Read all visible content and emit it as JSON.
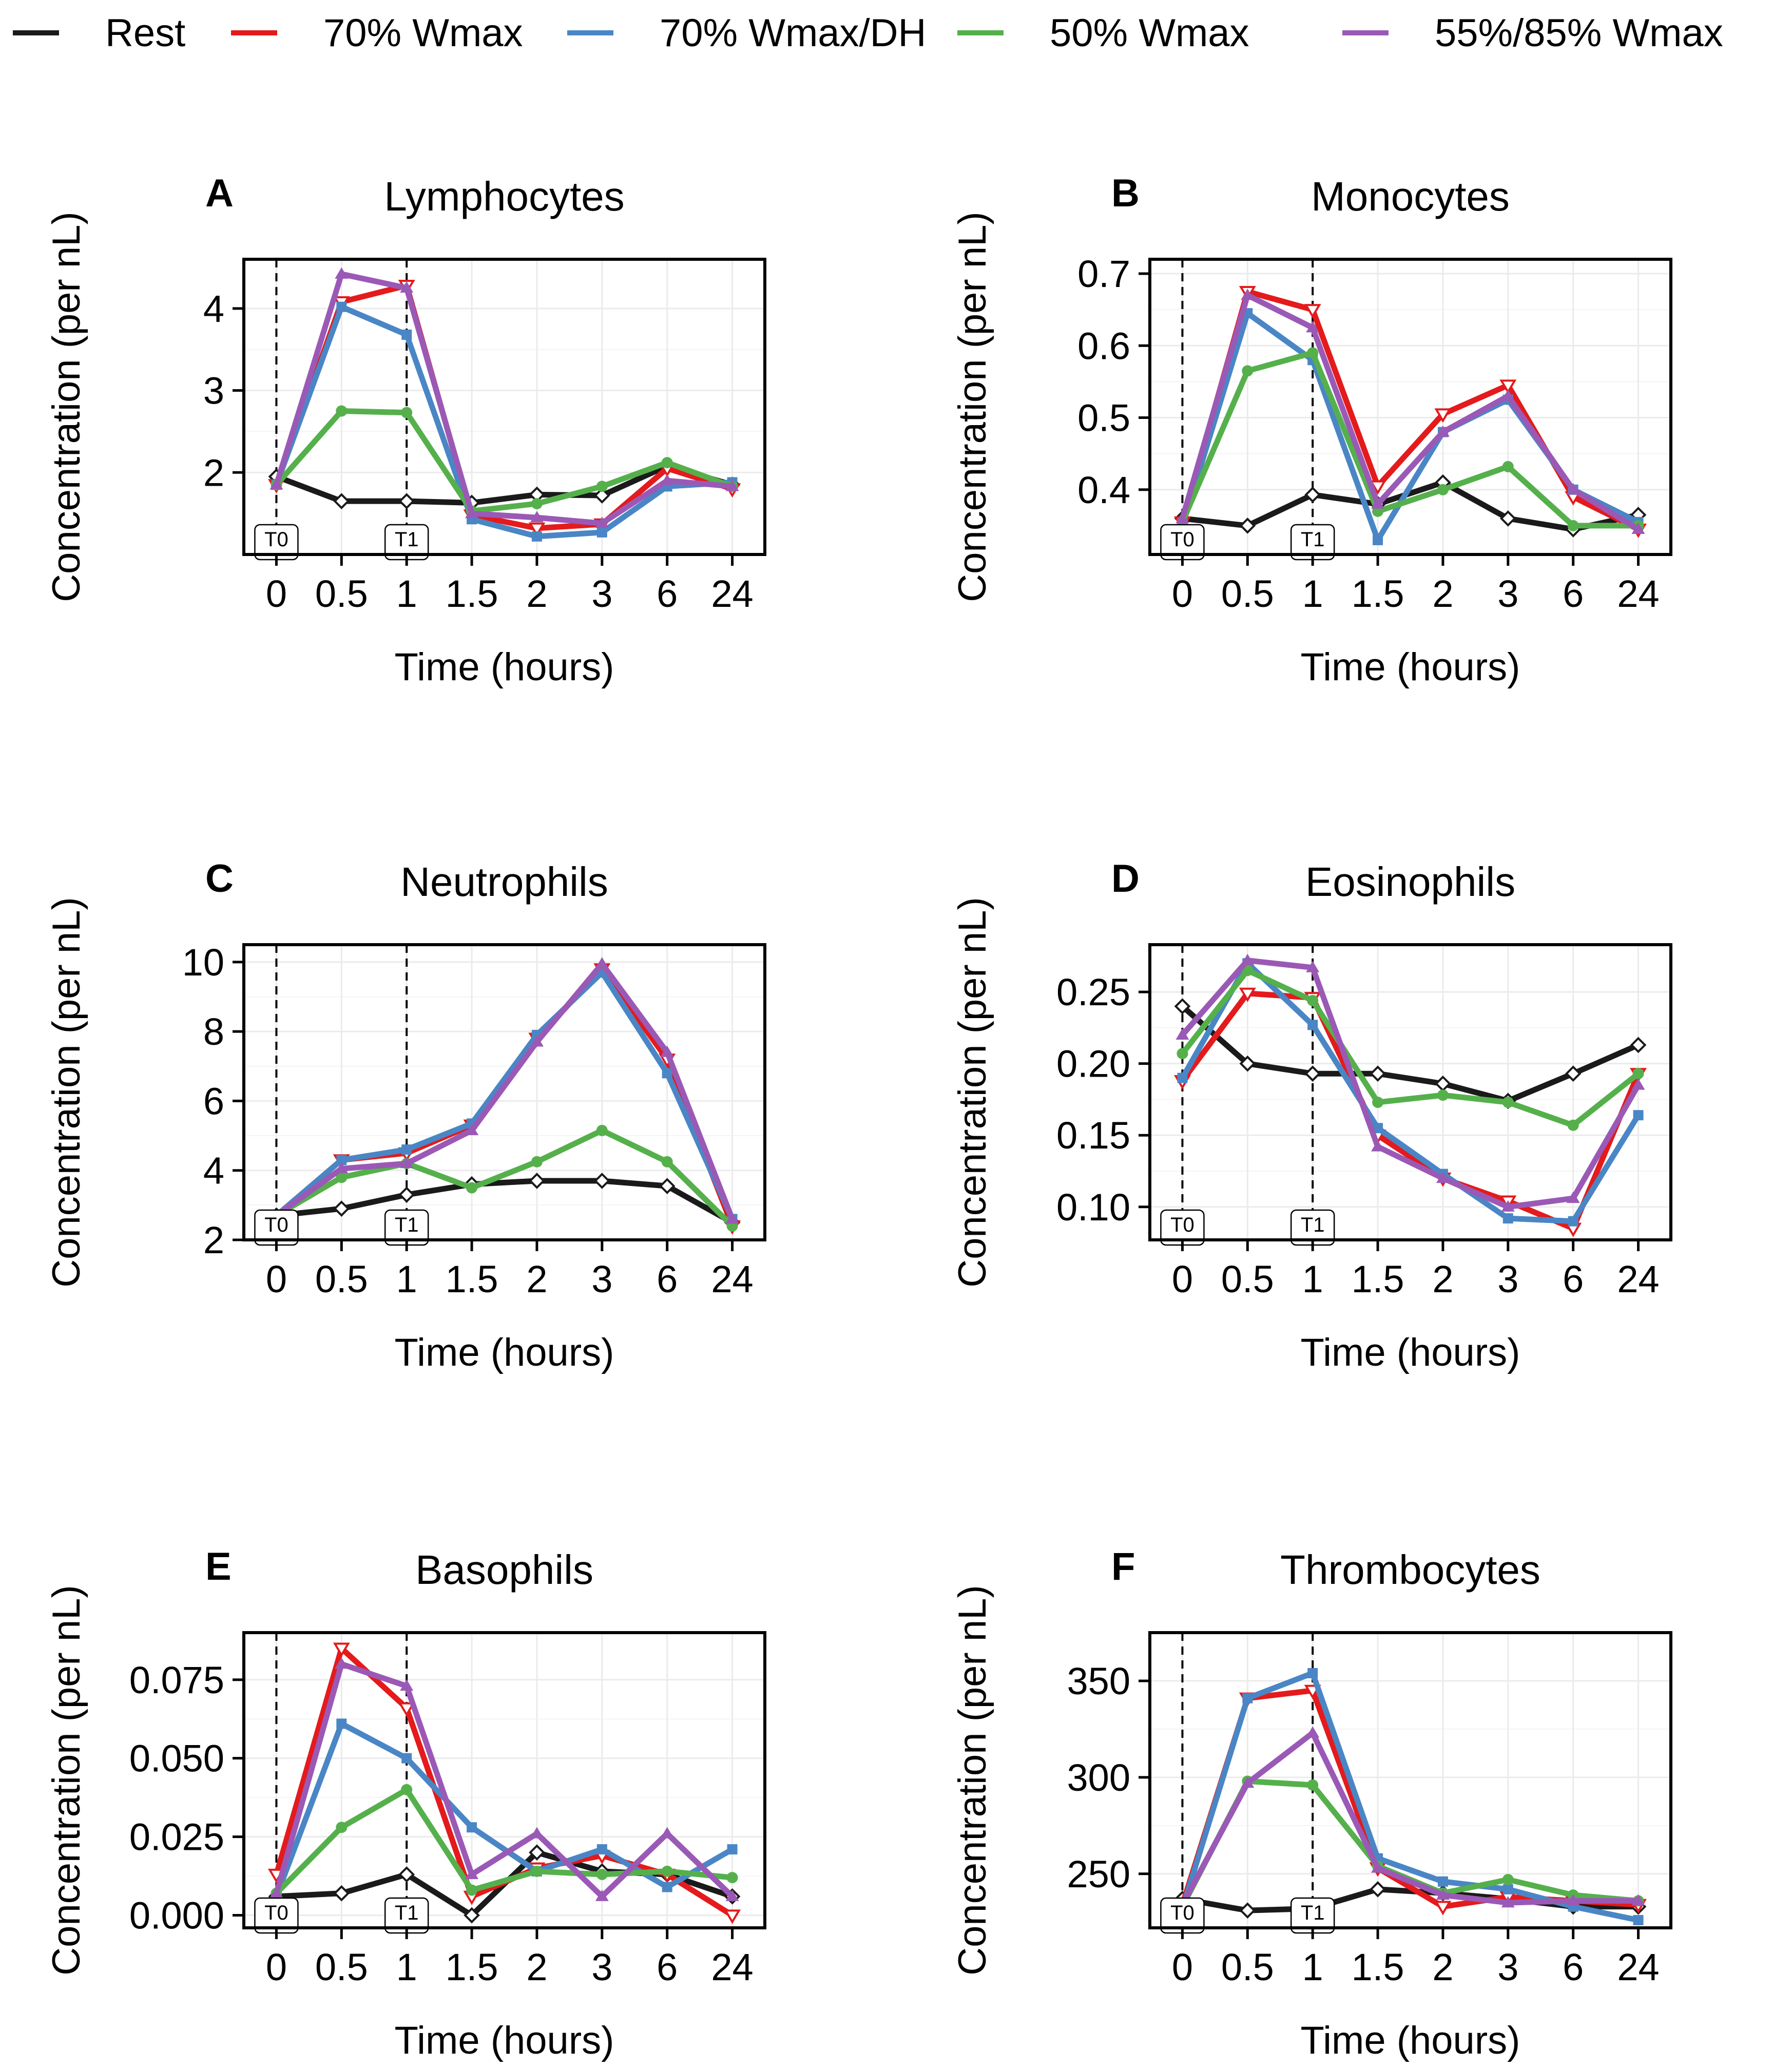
{
  "legend": [
    {
      "name": "Rest",
      "color": "#1a1a1a"
    },
    {
      "name": "70% Wmax",
      "color": "#e41a1c"
    },
    {
      "name": "70% Wmax/DH",
      "color": "#4a86c5"
    },
    {
      "name": "50% Wmax",
      "color": "#55b04c"
    },
    {
      "name": "55%/85% Wmax",
      "color": "#9b59b6"
    }
  ],
  "chart_data": [
    {
      "type": "line",
      "panel": "A",
      "title": "Lymphocytes",
      "xlabel": "Time (hours)",
      "ylabel": "Concentration (per nL)",
      "categories": [
        "0",
        "0.5",
        "1",
        "1.5",
        "2",
        "3",
        "6",
        "24"
      ],
      "ylim": [
        1.0,
        4.6
      ],
      "yticks": [
        2,
        3,
        4
      ],
      "ytick_labels": [
        "2",
        "3",
        "4"
      ],
      "markers": [
        "T0",
        "T1"
      ],
      "series": [
        {
          "name": "Rest",
          "values": [
            1.95,
            1.65,
            1.65,
            1.63,
            1.73,
            1.72,
            2.08,
            1.85
          ]
        },
        {
          "name": "70% Wmax",
          "values": [
            1.85,
            4.08,
            4.28,
            1.48,
            1.32,
            1.37,
            2.05,
            1.8
          ]
        },
        {
          "name": "70% Wmax/DH",
          "values": [
            1.85,
            4.02,
            3.68,
            1.43,
            1.22,
            1.27,
            1.83,
            1.88
          ]
        },
        {
          "name": "50% Wmax",
          "values": [
            1.85,
            2.75,
            2.73,
            1.53,
            1.62,
            1.83,
            2.12,
            1.83
          ]
        },
        {
          "name": "55%/85% Wmax",
          "values": [
            1.85,
            4.42,
            4.25,
            1.5,
            1.45,
            1.38,
            1.9,
            1.83
          ]
        }
      ]
    },
    {
      "type": "line",
      "panel": "B",
      "title": "Monocytes",
      "xlabel": "Time (hours)",
      "ylabel": "Concentration (per nL)",
      "categories": [
        "0",
        "0.5",
        "1",
        "1.5",
        "2",
        "3",
        "6",
        "24"
      ],
      "ylim": [
        0.31,
        0.72
      ],
      "yticks": [
        0.4,
        0.5,
        0.6,
        0.7
      ],
      "ytick_labels": [
        "0.4",
        "0.5",
        "0.6",
        "0.7"
      ],
      "markers": [
        "T0",
        "T1"
      ],
      "series": [
        {
          "name": "Rest",
          "values": [
            0.36,
            0.35,
            0.393,
            0.38,
            0.41,
            0.36,
            0.345,
            0.365
          ]
        },
        {
          "name": "70% Wmax",
          "values": [
            0.355,
            0.675,
            0.65,
            0.405,
            0.505,
            0.545,
            0.39,
            0.345
          ]
        },
        {
          "name": "70% Wmax/DH",
          "values": [
            0.35,
            0.645,
            0.58,
            0.33,
            0.48,
            0.525,
            0.4,
            0.355
          ]
        },
        {
          "name": "50% Wmax",
          "values": [
            0.355,
            0.565,
            0.59,
            0.37,
            0.4,
            0.432,
            0.35,
            0.35
          ]
        },
        {
          "name": "55%/85% Wmax",
          "values": [
            0.36,
            0.67,
            0.625,
            0.38,
            0.48,
            0.53,
            0.4,
            0.345
          ]
        }
      ]
    },
    {
      "type": "line",
      "panel": "C",
      "title": "Neutrophils",
      "xlabel": "Time (hours)",
      "ylabel": "Concentration (per nL)",
      "categories": [
        "0",
        "0.5",
        "1",
        "1.5",
        "2",
        "3",
        "6",
        "24"
      ],
      "ylim": [
        2.0,
        10.5
      ],
      "yticks": [
        2,
        4,
        6,
        8,
        10
      ],
      "ytick_labels": [
        "2",
        "4",
        "6",
        "8",
        "10"
      ],
      "markers": [
        "T0",
        "T1"
      ],
      "series": [
        {
          "name": "Rest",
          "values": [
            2.7,
            2.9,
            3.3,
            3.6,
            3.7,
            3.7,
            3.55,
            2.5
          ]
        },
        {
          "name": "70% Wmax",
          "values": [
            2.7,
            4.3,
            4.5,
            5.3,
            7.8,
            9.8,
            7.2,
            2.4
          ]
        },
        {
          "name": "70% Wmax/DH",
          "values": [
            2.7,
            4.3,
            4.6,
            5.35,
            7.9,
            9.7,
            6.8,
            2.6
          ]
        },
        {
          "name": "50% Wmax",
          "values": [
            2.7,
            3.8,
            4.2,
            3.5,
            4.25,
            5.15,
            4.25,
            2.4
          ]
        },
        {
          "name": "55%/85% Wmax",
          "values": [
            2.7,
            4.05,
            4.2,
            5.15,
            7.7,
            9.95,
            7.4,
            2.6
          ]
        }
      ]
    },
    {
      "type": "line",
      "panel": "D",
      "title": "Eosinophils",
      "xlabel": "Time (hours)",
      "ylabel": "Concentration (per nL)",
      "categories": [
        "0",
        "0.5",
        "1",
        "1.5",
        "2",
        "3",
        "6",
        "24"
      ],
      "ylim": [
        0.077,
        0.283
      ],
      "yticks": [
        0.1,
        0.15,
        0.2,
        0.25
      ],
      "ytick_labels": [
        "0.10",
        "0.15",
        "0.20",
        "0.25"
      ],
      "markers": [
        "T0",
        "T1"
      ],
      "series": [
        {
          "name": "Rest",
          "values": [
            0.24,
            0.2,
            0.193,
            0.193,
            0.186,
            0.174,
            0.193,
            0.213
          ]
        },
        {
          "name": "70% Wmax",
          "values": [
            0.188,
            0.249,
            0.246,
            0.15,
            0.12,
            0.104,
            0.085,
            0.193
          ]
        },
        {
          "name": "70% Wmax/DH",
          "values": [
            0.19,
            0.27,
            0.227,
            0.155,
            0.123,
            0.092,
            0.09,
            0.164
          ]
        },
        {
          "name": "50% Wmax",
          "values": [
            0.207,
            0.265,
            0.244,
            0.173,
            0.178,
            0.173,
            0.157,
            0.193
          ]
        },
        {
          "name": "55%/85% Wmax",
          "values": [
            0.22,
            0.272,
            0.267,
            0.142,
            0.12,
            0.1,
            0.106,
            0.185
          ]
        }
      ]
    },
    {
      "type": "line",
      "panel": "E",
      "title": "Basophils",
      "xlabel": "Time (hours)",
      "ylabel": "Concentration (per nL)",
      "categories": [
        "0",
        "0.5",
        "1",
        "1.5",
        "2",
        "3",
        "6",
        "24"
      ],
      "ylim": [
        -0.004,
        0.09
      ],
      "yticks": [
        0.0,
        0.025,
        0.05,
        0.075
      ],
      "ytick_labels": [
        "0.000",
        "0.025",
        "0.050",
        "0.075"
      ],
      "markers": [
        "T0",
        "T1"
      ],
      "series": [
        {
          "name": "Rest",
          "values": [
            0.006,
            0.007,
            0.013,
            0.0,
            0.02,
            0.014,
            0.013,
            0.006
          ]
        },
        {
          "name": "70% Wmax",
          "values": [
            0.013,
            0.085,
            0.066,
            0.006,
            0.015,
            0.019,
            0.013,
            0.0
          ]
        },
        {
          "name": "70% Wmax/DH",
          "values": [
            0.006,
            0.061,
            0.05,
            0.028,
            0.014,
            0.021,
            0.009,
            0.021
          ]
        },
        {
          "name": "50% Wmax",
          "values": [
            0.007,
            0.028,
            0.04,
            0.008,
            0.014,
            0.013,
            0.014,
            0.012
          ]
        },
        {
          "name": "55%/85% Wmax",
          "values": [
            0.007,
            0.08,
            0.073,
            0.013,
            0.026,
            0.006,
            0.026,
            0.006
          ]
        }
      ]
    },
    {
      "type": "line",
      "panel": "F",
      "title": "Thrombocytes",
      "xlabel": "Time (hours)",
      "ylabel": "Concentration (per nL)",
      "categories": [
        "0",
        "0.5",
        "1",
        "1.5",
        "2",
        "3",
        "6",
        "24"
      ],
      "ylim": [
        222,
        375
      ],
      "yticks": [
        250,
        300,
        350
      ],
      "ytick_labels": [
        "250",
        "300",
        "350"
      ],
      "markers": [
        "T0",
        "T1"
      ],
      "series": [
        {
          "name": "Rest",
          "values": [
            237,
            231,
            232,
            242,
            240,
            237,
            233,
            233
          ]
        },
        {
          "name": "70% Wmax",
          "values": [
            234,
            341,
            345,
            253,
            233,
            238,
            236,
            234
          ]
        },
        {
          "name": "70% Wmax/DH",
          "values": [
            232,
            341,
            354,
            258,
            246,
            242,
            233,
            226
          ]
        },
        {
          "name": "50% Wmax",
          "values": [
            233,
            298,
            296,
            254,
            240,
            247,
            239,
            236
          ]
        },
        {
          "name": "55%/85% Wmax",
          "values": [
            234,
            297,
            323,
            253,
            239,
            235,
            236,
            236
          ]
        }
      ]
    }
  ]
}
